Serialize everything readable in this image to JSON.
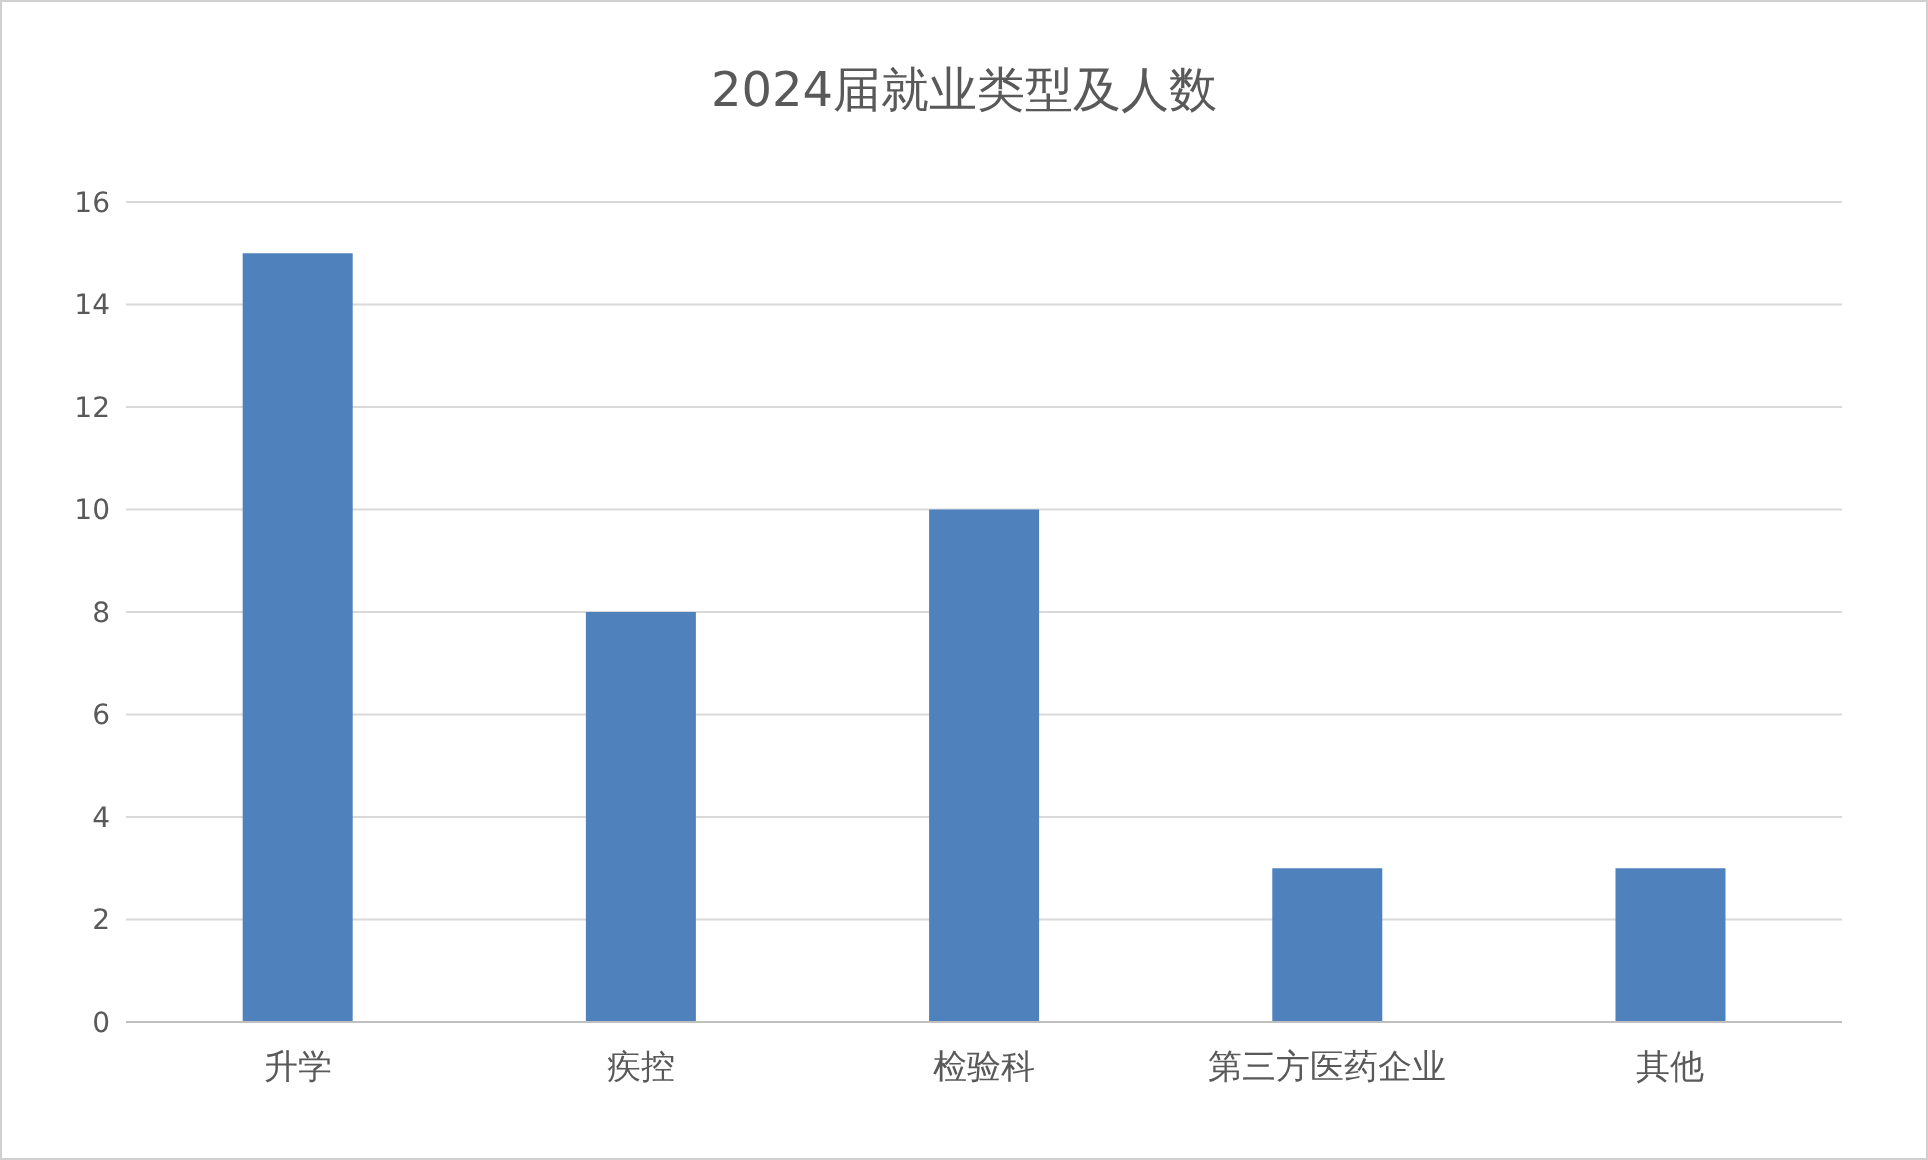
{
  "chart_data": {
    "type": "bar",
    "title": "2024届就业类型及人数",
    "categories": [
      "升学",
      "疾控",
      "检验科",
      "第三方医药企业",
      "其他"
    ],
    "values": [
      15,
      8,
      10,
      3,
      3
    ],
    "color": "#4f81bd",
    "ylim": [
      0,
      16
    ],
    "yticks": [
      0,
      2,
      4,
      6,
      8,
      10,
      12,
      14,
      16
    ],
    "grid": "y"
  }
}
